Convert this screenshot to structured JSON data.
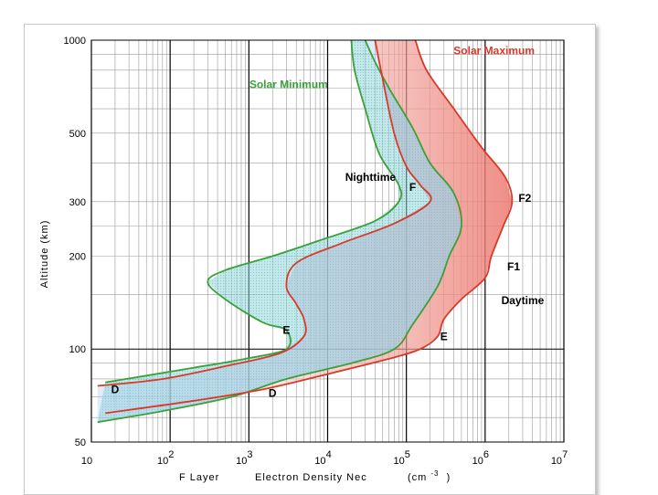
{
  "chart_data": {
    "type": "line",
    "title": "",
    "xlabel_parts": [
      "F Layer",
      "Electron Density Nec",
      "(cm",
      "-3",
      ")"
    ],
    "ylabel": "Altitude (km)",
    "x_scale": "log",
    "y_scale": "log",
    "xlim": [
      10,
      10000000
    ],
    "ylim": [
      50,
      1000
    ],
    "x_ticks": [
      {
        "value": 10,
        "base": "10",
        "exp": ""
      },
      {
        "value": 100,
        "base": "10",
        "exp": "2"
      },
      {
        "value": 1000,
        "base": "10",
        "exp": "3"
      },
      {
        "value": 10000,
        "base": "10",
        "exp": "4"
      },
      {
        "value": 100000,
        "base": "10",
        "exp": "5"
      },
      {
        "value": 1000000,
        "base": "10",
        "exp": "6"
      },
      {
        "value": 10000000,
        "base": "10",
        "exp": "7"
      }
    ],
    "y_ticks": [
      1000,
      500,
      300,
      200,
      100,
      50
    ],
    "colors": {
      "solar_minimum": "#3aa03a",
      "solar_maximum": "#d83a2a",
      "fill_min": "#8fd8d8",
      "fill_night": "#a9c8ee",
      "fill_max": "#f08a80",
      "grid_major": "#000000",
      "grid_minor": "#9a9a9a"
    },
    "series": [
      {
        "name": "Solar Minimum - Nighttime",
        "color": "#3aa03a",
        "points": [
          [
            15,
            78
          ],
          [
            50,
            82
          ],
          [
            200,
            87
          ],
          [
            900,
            93
          ],
          [
            3000,
            100
          ],
          [
            3000,
            115
          ],
          [
            1500,
            122
          ],
          [
            500,
            145
          ],
          [
            300,
            165
          ],
          [
            500,
            180
          ],
          [
            2000,
            200
          ],
          [
            8000,
            225
          ],
          [
            40000,
            260
          ],
          [
            80000,
            300
          ],
          [
            80000,
            340
          ],
          [
            45000,
            430
          ],
          [
            30000,
            600
          ],
          [
            22000,
            800
          ],
          [
            20000,
            1000
          ]
        ]
      },
      {
        "name": "Solar Minimum - Daytime",
        "color": "#3aa03a",
        "points": [
          [
            12,
            58
          ],
          [
            80,
            63
          ],
          [
            600,
            70
          ],
          [
            3000,
            80
          ],
          [
            20000,
            90
          ],
          [
            70000,
            100
          ],
          [
            120000,
            120
          ],
          [
            250000,
            160
          ],
          [
            350000,
            200
          ],
          [
            500000,
            250
          ],
          [
            400000,
            320
          ],
          [
            200000,
            400
          ],
          [
            120000,
            520
          ],
          [
            60000,
            700
          ],
          [
            40000,
            850
          ],
          [
            30000,
            1000
          ]
        ]
      },
      {
        "name": "Solar Maximum - Nighttime",
        "color": "#d83a2a",
        "points": [
          [
            12,
            76
          ],
          [
            80,
            80
          ],
          [
            500,
            88
          ],
          [
            2500,
            97
          ],
          [
            5000,
            110
          ],
          [
            5000,
            125
          ],
          [
            4000,
            140
          ],
          [
            3000,
            160
          ],
          [
            4000,
            190
          ],
          [
            15000,
            220
          ],
          [
            70000,
            255
          ],
          [
            200000,
            300
          ],
          [
            150000,
            340
          ],
          [
            100000,
            390
          ],
          [
            70000,
            500
          ],
          [
            50000,
            750
          ],
          [
            40000,
            1000
          ]
        ]
      },
      {
        "name": "Solar Maximum - Daytime",
        "color": "#d83a2a",
        "points": [
          [
            15,
            62
          ],
          [
            200,
            68
          ],
          [
            1500,
            74
          ],
          [
            10000,
            83
          ],
          [
            60000,
            93
          ],
          [
            150000,
            100
          ],
          [
            250000,
            110
          ],
          [
            300000,
            125
          ],
          [
            500000,
            145
          ],
          [
            1000000,
            170
          ],
          [
            1200000,
            200
          ],
          [
            1700000,
            250
          ],
          [
            2200000,
            300
          ],
          [
            1800000,
            360
          ],
          [
            900000,
            450
          ],
          [
            400000,
            600
          ],
          [
            180000,
            800
          ],
          [
            130000,
            1000
          ]
        ]
      }
    ],
    "annotations": [
      {
        "text": "Solar Maximum",
        "color": "#d83a2a",
        "x": 1300000,
        "y": 900
      },
      {
        "text": "Solar Minimum",
        "color": "#3aa03a",
        "x": 3200,
        "y": 700
      },
      {
        "text": "Nighttime",
        "color": "#000000",
        "x": 35000,
        "y": 350
      },
      {
        "text": "F",
        "color": "#000000",
        "x": 120000,
        "y": 325
      },
      {
        "text": "F2",
        "color": "#000000",
        "x": 3200000,
        "y": 300
      },
      {
        "text": "F1",
        "color": "#000000",
        "x": 2300000,
        "y": 180
      },
      {
        "text": "Daytime",
        "color": "#000000",
        "x": 3000000,
        "y": 140
      },
      {
        "text": "E",
        "color": "#000000",
        "x": 3000,
        "y": 112
      },
      {
        "text": "E",
        "color": "#000000",
        "x": 300000,
        "y": 107
      },
      {
        "text": "D",
        "color": "#000000",
        "x": 20,
        "y": 72
      },
      {
        "text": "D",
        "color": "#000000",
        "x": 2000,
        "y": 70
      }
    ]
  }
}
